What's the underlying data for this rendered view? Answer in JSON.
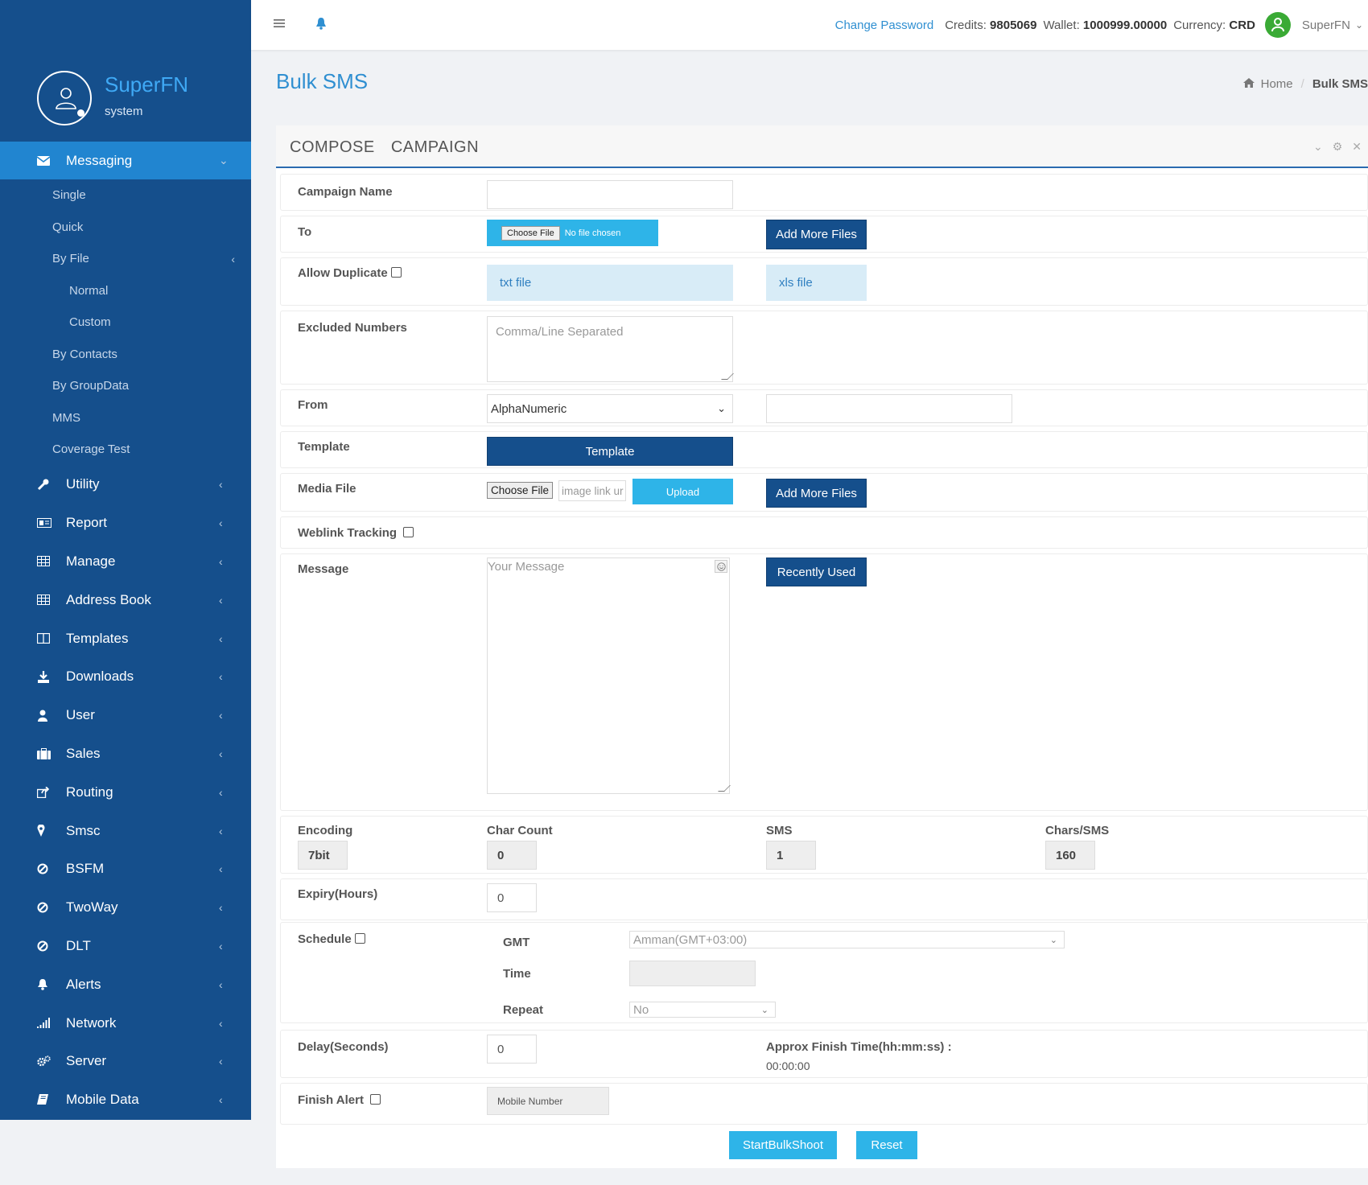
{
  "profile": {
    "name": "SuperFN",
    "role": "system"
  },
  "menu": [
    {
      "label": "Messaging",
      "icon": "envelope-icon",
      "active": true
    },
    {
      "label": "Utility",
      "icon": "wrench-icon"
    },
    {
      "label": "Report",
      "icon": "report-icon"
    },
    {
      "label": "Manage",
      "icon": "table-icon"
    },
    {
      "label": "Address Book",
      "icon": "table-icon"
    },
    {
      "label": "Templates",
      "icon": "columns-icon"
    },
    {
      "label": "Downloads",
      "icon": "download-icon"
    },
    {
      "label": "User",
      "icon": "user-icon"
    },
    {
      "label": "Sales",
      "icon": "briefcase-icon"
    },
    {
      "label": "Routing",
      "icon": "share-icon"
    },
    {
      "label": "Smsc",
      "icon": "map-pin-icon"
    },
    {
      "label": "BSFM",
      "icon": "ban-icon"
    },
    {
      "label": "TwoWay",
      "icon": "ban-icon"
    },
    {
      "label": "DLT",
      "icon": "ban-icon"
    },
    {
      "label": "Alerts",
      "icon": "bell-icon"
    },
    {
      "label": "Network",
      "icon": "signal-icon"
    },
    {
      "label": "Server",
      "icon": "cogs-icon"
    },
    {
      "label": "Mobile Data",
      "icon": "book-icon"
    }
  ],
  "submenu": {
    "single": "Single",
    "quick": "Quick",
    "by_file": "By File",
    "normal": "Normal",
    "custom": "Custom",
    "by_contacts": "By Contacts",
    "by_groupdata": "By GroupData",
    "mms": "MMS",
    "coverage_test": "Coverage Test"
  },
  "topbar": {
    "change_password": "Change Password",
    "credits_label": "Credits:",
    "credits_value": "9805069",
    "wallet_label": "Wallet:",
    "wallet_value": "1000999.00000",
    "currency_label": "Currency:",
    "currency_value": "CRD",
    "user_name": "SuperFN"
  },
  "page": {
    "title": "Bulk SMS",
    "breadcrumb_home": "Home",
    "breadcrumb_current": "Bulk SMS"
  },
  "panel": {
    "tab_compose": "COMPOSE",
    "tab_campaign": "CAMPAIGN"
  },
  "form": {
    "campaign_name_label": "Campaign Name",
    "campaign_name_value": "",
    "to_label": "To",
    "choose_file": "Choose File",
    "no_file_chosen": "No file chosen",
    "add_more_files": "Add More Files",
    "allow_duplicate_label": "Allow Duplicate",
    "txt_file": "txt file",
    "xls_file": "xls file",
    "excluded_numbers_label": "Excluded Numbers",
    "excluded_numbers_placeholder": "Comma/Line Separated",
    "from_label": "From",
    "from_selected": "AlphaNumeric",
    "from_value": "",
    "template_label": "Template",
    "template_button": "Template",
    "media_file_label": "Media File",
    "media_choose_file": "Choose File",
    "media_link_placeholder": "image link ur",
    "upload_button": "Upload",
    "media_add_more_files": "Add More Files",
    "weblink_tracking_label": "Weblink Tracking",
    "message_label": "Message",
    "message_placeholder": "Your Message",
    "recently_used": "Recently Used",
    "encoding_label": "Encoding",
    "encoding_value": "7bit",
    "char_count_label": "Char Count",
    "char_count_value": "0",
    "sms_label": "SMS",
    "sms_value": "1",
    "chars_per_sms_label": "Chars/SMS",
    "chars_per_sms_value": "160",
    "expiry_label": "Expiry(Hours)",
    "expiry_value": "0",
    "schedule_label": "Schedule",
    "gmt_label": "GMT",
    "gmt_value": "Amman(GMT+03:00)",
    "time_label": "Time",
    "time_value": "",
    "repeat_label": "Repeat",
    "repeat_value": "No",
    "delay_label": "Delay(Seconds)",
    "delay_value": "0",
    "approx_finish_label": "Approx Finish Time(hh:mm:ss) :",
    "approx_finish_value": "00:00:00",
    "finish_alert_label": "Finish Alert",
    "mobile_number_placeholder": "Mobile Number",
    "start_button": "StartBulkShoot",
    "reset_button": "Reset"
  },
  "colors": {
    "sidebar": "#154f8c",
    "active_menu": "#2185d0",
    "accent": "#2f8fd1",
    "button_dark": "#154f8c",
    "button_light": "#2eb4e8"
  }
}
